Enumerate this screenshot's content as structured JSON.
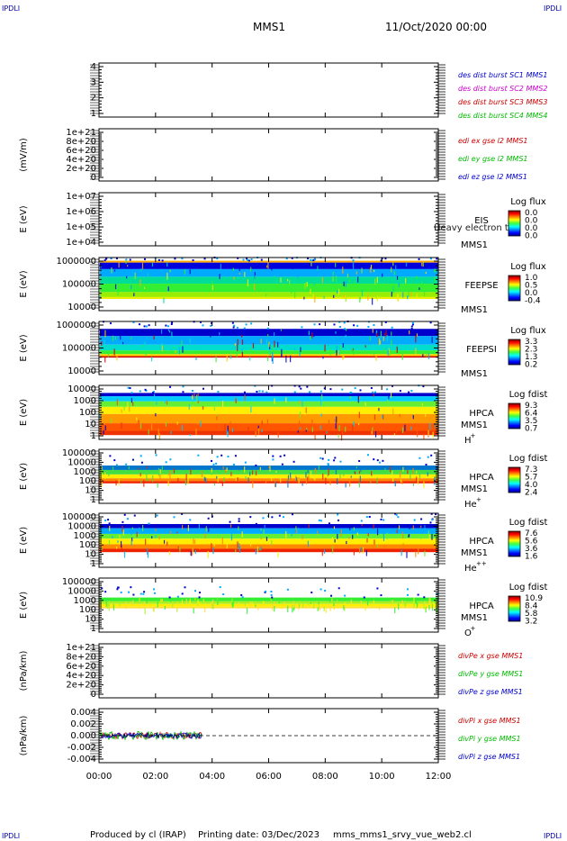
{
  "header": {
    "corner_tl": "IPDLI",
    "corner_tr": "IPDLI",
    "corner_bl": "IPDLI",
    "corner_br": "IPDLI",
    "spacecraft": "MMS1",
    "date": "11/Oct/2020 00:00"
  },
  "footer": {
    "produced_by": "Produced by cl (IRAP)",
    "printing_date": "Printing date: 03/Dec/2023",
    "script_name": "mms_mms1_srvy_vue_web2.cl"
  },
  "x_axis": {
    "ticks": [
      "00:00",
      "02:00",
      "04:00",
      "06:00",
      "08:00",
      "10:00",
      "12:00"
    ],
    "range_hours": [
      0,
      12
    ]
  },
  "chart_data": [
    {
      "type": "line",
      "id": "des-dist",
      "ylabel": "",
      "yticks": [
        "4",
        "3",
        "2",
        "1"
      ],
      "ylim": [
        0.5,
        4.5
      ],
      "legend": [
        {
          "label": "des dist burst SC1 MMS1",
          "color": "#0000cc"
        },
        {
          "label": "des dist burst SC2 MMS2",
          "color": "#cc00cc"
        },
        {
          "label": "des dist burst SC3 MMS3",
          "color": "#cc0000"
        },
        {
          "label": "des dist burst SC4 MMS4",
          "color": "#00bb00"
        }
      ],
      "series": []
    },
    {
      "type": "line",
      "id": "edi-e",
      "ylabel": "(mV/m)",
      "yticks": [
        "1e+21",
        "8e+20",
        "6e+20",
        "4e+20",
        "2e+20",
        "0"
      ],
      "ylim": [
        0,
        1e+21
      ],
      "legend": [
        {
          "label": "edi ex gse l2 MMS1",
          "color": "#cc0000"
        },
        {
          "label": "edi ey gse l2 MMS1",
          "color": "#00bb00"
        },
        {
          "label": "edi ez gse l2 MMS1",
          "color": "#0000cc"
        }
      ],
      "series": []
    },
    {
      "type": "heatmap",
      "id": "eis",
      "ylabel": "E (eV)",
      "yticks": [
        "1e+07",
        "1e+06",
        "1e+05",
        "1e+04"
      ],
      "instrument": "EIS",
      "spacecraft": "MMS1",
      "overlay_text": "Heavy electron to",
      "colorbar_title": "Log flux",
      "colorbar_ticks": [
        "0.0",
        "0.0",
        "0.0",
        "0.0"
      ],
      "band": null
    },
    {
      "type": "heatmap",
      "id": "feepse",
      "ylabel": "E (eV)",
      "yticks": [
        "1000000",
        "100000",
        "10000"
      ],
      "instrument": "FEEPSE",
      "spacecraft": "MMS1",
      "colorbar_title": "Log flux",
      "colorbar_ticks": [
        "1.0",
        "0.5",
        "0.0",
        "-0.4"
      ],
      "band": {
        "top": 0.06,
        "bottom": 0.78,
        "style": "feepse",
        "x_end_hours": 12
      }
    },
    {
      "type": "heatmap",
      "id": "feepsi",
      "ylabel": "E (eV)",
      "yticks": [
        "1000000",
        "100000",
        "10000"
      ],
      "instrument": "FEEPSI",
      "spacecraft": "MMS1",
      "colorbar_title": "Log flux",
      "colorbar_ticks": [
        "3.3",
        "2.3",
        "1.3",
        "0.2"
      ],
      "band": {
        "top": 0.14,
        "bottom": 0.68,
        "style": "feepsi",
        "x_end_hours": 12
      }
    },
    {
      "type": "heatmap",
      "id": "hpca-h",
      "ylabel": "E (eV)",
      "yticks": [
        "10000",
        "1000",
        "100",
        "10",
        "1"
      ],
      "instrument": "HPCA",
      "spacecraft": "MMS1",
      "species": "H",
      "species_sup": "+",
      "colorbar_title": "Log fdist",
      "colorbar_ticks": [
        "9.3",
        "6.4",
        "3.5",
        "0.7"
      ],
      "band": {
        "top": 0.14,
        "bottom": 0.92,
        "style": "hpca-h",
        "x_end_hours": 12
      }
    },
    {
      "type": "heatmap",
      "id": "hpca-he1",
      "ylabel": "E (eV)",
      "yticks": [
        "100000",
        "10000",
        "1000",
        "100",
        "10",
        "1"
      ],
      "instrument": "HPCA",
      "spacecraft": "MMS1",
      "species": "He",
      "species_sup": "+",
      "colorbar_title": "Log fdist",
      "colorbar_ticks": [
        "7.3",
        "5.7",
        "4.0",
        "2.4"
      ],
      "band": {
        "top": 0.3,
        "bottom": 0.63,
        "style": "hpca-he1",
        "x_end_hours": 12
      }
    },
    {
      "type": "heatmap",
      "id": "hpca-he2",
      "ylabel": "E (eV)",
      "yticks": [
        "100000",
        "10000",
        "1000",
        "100",
        "10",
        "1"
      ],
      "instrument": "HPCA",
      "spacecraft": "MMS1",
      "species": "He",
      "species_sup": "++",
      "colorbar_title": "Log fdist",
      "colorbar_ticks": [
        "7.6",
        "5.6",
        "3.6",
        "1.6"
      ],
      "band": {
        "top": 0.2,
        "bottom": 0.72,
        "style": "hpca-he2",
        "x_end_hours": 12
      }
    },
    {
      "type": "heatmap",
      "id": "hpca-o",
      "ylabel": "E (eV)",
      "yticks": [
        "100000",
        "10000",
        "1000",
        "100",
        "10",
        "1"
      ],
      "instrument": "HPCA",
      "spacecraft": "MMS1",
      "species": "O",
      "species_sup": "+",
      "colorbar_title": "Log fdist",
      "colorbar_ticks": [
        "10.9",
        "8.4",
        "5.8",
        "3.2"
      ],
      "band": {
        "top": 0.36,
        "bottom": 0.56,
        "style": "hpca-o",
        "x_end_hours": 12
      }
    },
    {
      "type": "line",
      "id": "divpe",
      "ylabel": "(nPa/km)",
      "yticks": [
        "1e+21",
        "8e+20",
        "6e+20",
        "4e+20",
        "2e+20",
        "0"
      ],
      "ylim": [
        0,
        1e+21
      ],
      "legend": [
        {
          "label": "divPe x gse MMS1",
          "color": "#cc0000"
        },
        {
          "label": "divPe y gse MMS1",
          "color": "#00bb00"
        },
        {
          "label": "divPe z gse MMS1",
          "color": "#0000cc"
        }
      ],
      "series": []
    },
    {
      "type": "line",
      "id": "divpi",
      "ylabel": "(nPa/km)",
      "yticks": [
        "0.004",
        "0.002",
        "0.000",
        "-0.002",
        "-0.004"
      ],
      "ylim": [
        -0.005,
        0.005
      ],
      "data_end_hours": 3.65,
      "legend": [
        {
          "label": "divPi x gse MMS1",
          "color": "#cc0000"
        },
        {
          "label": "divPi y gse MMS1",
          "color": "#00bb00"
        },
        {
          "label": "divPi z gse MMS1",
          "color": "#0000cc"
        }
      ],
      "series": [
        {
          "name": "divPi x gse MMS1",
          "color": "#cc0000",
          "amplitude": 0.0006
        },
        {
          "name": "divPi y gse MMS1",
          "color": "#00bb00",
          "amplitude": 0.0008
        },
        {
          "name": "divPi z gse MMS1",
          "color": "#0000cc",
          "amplitude": 0.0005
        }
      ]
    }
  ]
}
